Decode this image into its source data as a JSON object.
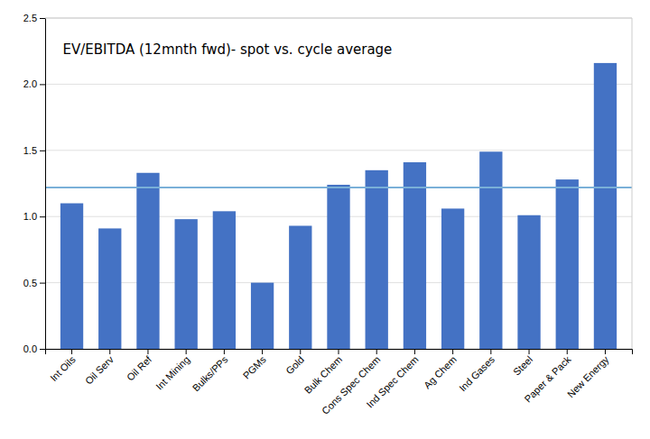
{
  "chart_data": {
    "type": "bar",
    "title": "EV/EBITDA (12mnth fwd)- spot vs. cycle average",
    "categories": [
      "Int Oils",
      "Oil Serv",
      "Oil Ref",
      "Int Mining",
      "Bulks/PPs",
      "PGMs",
      "Gold",
      "Bulk Chem",
      "Cons Spec Chem",
      "Ind Spec Chem",
      "Ag Chem",
      "Ind Gases",
      "Steel",
      "Paper & Pack",
      "New Energy"
    ],
    "values": [
      1.1,
      0.91,
      1.33,
      0.98,
      1.04,
      0.5,
      0.93,
      1.24,
      1.35,
      1.41,
      1.06,
      1.49,
      1.01,
      1.28,
      2.16
    ],
    "color": "#4472C4",
    "reference_line": {
      "value": 1.22,
      "color": "#7ab0d8"
    },
    "ylim": [
      0,
      2.5
    ],
    "yticks": [
      {
        "value": 0,
        "label": "0.0"
      },
      0.5,
      {
        "value": 1,
        "label": "1.0"
      },
      1.5,
      {
        "value": 2,
        "label": "2.0"
      },
      2.5
    ],
    "grid": true
  }
}
